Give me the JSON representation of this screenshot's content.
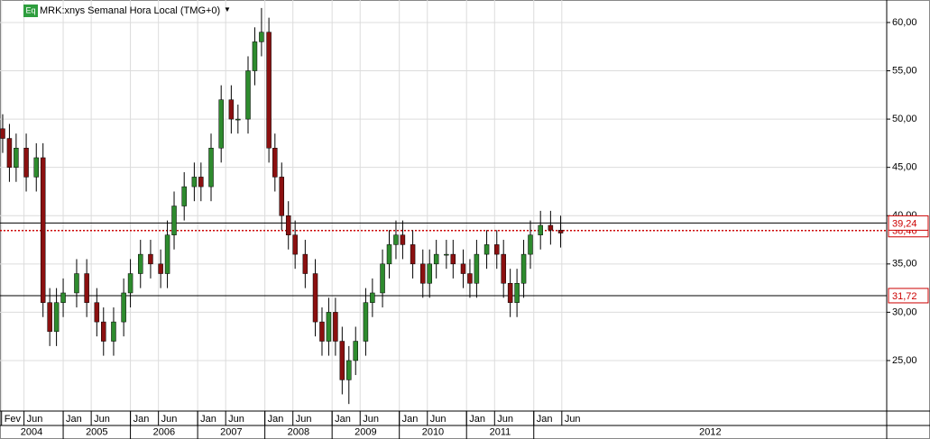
{
  "chart_data": {
    "type": "candlestick",
    "badge": "Eq",
    "title": "MRK:xnys Semanal Hora Local (TMG+0)",
    "menu": "▼",
    "up_color": "#2e8b2e",
    "down_color": "#8b1010",
    "grid": true,
    "x": [
      2004.1,
      2004.2,
      2004.3,
      2004.45,
      2004.6,
      2004.7,
      2004.8,
      2004.9,
      2005.0,
      2005.2,
      2005.35,
      2005.5,
      2005.6,
      2005.75,
      2005.9,
      2006.0,
      2006.15,
      2006.3,
      2006.45,
      2006.55,
      2006.65,
      2006.8,
      2006.95,
      2007.05,
      2007.2,
      2007.35,
      2007.5,
      2007.6,
      2007.75,
      2007.85,
      2007.95,
      2008.06,
      2008.15,
      2008.25,
      2008.35,
      2008.45,
      2008.6,
      2008.75,
      2008.85,
      2008.95,
      2009.05,
      2009.15,
      2009.25,
      2009.35,
      2009.5,
      2009.6,
      2009.75,
      2009.85,
      2009.95,
      2010.05,
      2010.2,
      2010.35,
      2010.45,
      2010.55,
      2010.7,
      2010.8,
      2010.95,
      2011.05,
      2011.15,
      2011.3,
      2011.45,
      2011.55,
      2011.65,
      2011.75,
      2011.85,
      2011.95,
      2012.1,
      2012.25,
      2012.4
    ],
    "open": [
      49,
      48,
      45,
      47,
      44,
      46,
      31,
      28,
      31,
      32,
      34,
      31,
      29,
      27,
      29,
      32,
      34,
      36,
      35,
      34,
      38,
      41,
      43,
      44,
      43,
      47,
      52,
      50,
      50,
      55,
      58,
      59,
      47,
      44,
      40,
      38,
      36,
      34,
      29,
      27,
      30,
      27,
      23,
      25,
      27,
      31,
      32,
      35,
      37,
      38,
      37,
      35,
      33,
      35,
      36,
      36,
      35,
      34,
      33,
      36,
      37,
      36,
      33,
      31,
      33,
      36,
      38,
      39,
      38.5
    ],
    "high": [
      50.5,
      49.5,
      48.5,
      48.5,
      47.5,
      47.5,
      32.5,
      32.5,
      33.5,
      35.5,
      35.5,
      32.5,
      30.5,
      30.5,
      33.5,
      35.5,
      37.5,
      37.5,
      36.5,
      39.5,
      42.5,
      44.5,
      45.5,
      45.5,
      48.5,
      53.5,
      53.5,
      51.5,
      56.5,
      59.5,
      61.5,
      60.5,
      48.5,
      45.5,
      41.5,
      39.5,
      37.5,
      35.5,
      30.5,
      31.5,
      31.5,
      28.5,
      26.5,
      28.5,
      32.5,
      33.5,
      36.5,
      38.5,
      39.5,
      39.5,
      38.5,
      36.5,
      36.5,
      37.5,
      37.5,
      37.5,
      36.5,
      35.5,
      37.5,
      38.5,
      38.5,
      37.5,
      34.5,
      34.5,
      37.5,
      39.5,
      40.5,
      40.5,
      40
    ],
    "low": [
      46.5,
      43.5,
      43.5,
      42.5,
      42.5,
      29.5,
      26.5,
      26.5,
      29.5,
      30.5,
      29.5,
      27.5,
      25.5,
      25.5,
      27.5,
      30.5,
      32.5,
      33.5,
      32.5,
      32.5,
      36.5,
      39.5,
      41.5,
      41.5,
      41.5,
      45.5,
      48.5,
      48.5,
      48.5,
      53.5,
      56.5,
      45.5,
      42.5,
      38.5,
      36.5,
      34.5,
      32.5,
      27.5,
      25.5,
      25.5,
      25.5,
      21.5,
      20.5,
      23.5,
      25.5,
      29.5,
      30.5,
      33.5,
      35.5,
      35.5,
      33.5,
      31.5,
      31.5,
      33.5,
      34.5,
      33.5,
      32.5,
      31.5,
      31.5,
      34.5,
      34.5,
      31.5,
      29.5,
      29.5,
      31.5,
      34.5,
      36.5,
      37,
      36.7
    ],
    "close": [
      48,
      45,
      47,
      44,
      46,
      31,
      28,
      31,
      32,
      34,
      31,
      29,
      27,
      29,
      32,
      34,
      36,
      35,
      34,
      38,
      41,
      43,
      44,
      43,
      47,
      52,
      50,
      50,
      55,
      58,
      59,
      47,
      44,
      40,
      38,
      36,
      34,
      29,
      27,
      30,
      27,
      23,
      25,
      27,
      31,
      32,
      35,
      37,
      38,
      37,
      35,
      33,
      35,
      36,
      36,
      35,
      34,
      33,
      36,
      37,
      36,
      33,
      31,
      33,
      36,
      38,
      39,
      38.5,
      38.2
    ],
    "xlim": [
      2004.06,
      2017.25
    ],
    "ylim": [
      19.77,
      62.33
    ],
    "yticks": [
      {
        "value": 25,
        "label": "25,00"
      },
      {
        "value": 30,
        "label": "30,00"
      },
      {
        "value": 35,
        "label": "35,00"
      },
      {
        "value": 40,
        "label": "40,00"
      },
      {
        "value": 45,
        "label": "45,00"
      },
      {
        "value": 50,
        "label": "50,00"
      },
      {
        "value": 55,
        "label": "55,00"
      },
      {
        "value": 60,
        "label": "60,00"
      }
    ],
    "xticks": [
      {
        "value": 2004.083,
        "label": "Fev"
      },
      {
        "value": 2004.417,
        "label": "Jun"
      },
      {
        "value": 2005.0,
        "label": "Jan"
      },
      {
        "value": 2005.417,
        "label": "Jun"
      },
      {
        "value": 2006.0,
        "label": "Jan"
      },
      {
        "value": 2006.417,
        "label": "Jun"
      },
      {
        "value": 2007.0,
        "label": "Jan"
      },
      {
        "value": 2007.417,
        "label": "Jun"
      },
      {
        "value": 2008.0,
        "label": "Jan"
      },
      {
        "value": 2008.417,
        "label": "Jun"
      },
      {
        "value": 2009.0,
        "label": "Jan"
      },
      {
        "value": 2009.417,
        "label": "Jun"
      },
      {
        "value": 2010.0,
        "label": "Jan"
      },
      {
        "value": 2010.417,
        "label": "Jun"
      },
      {
        "value": 2011.0,
        "label": "Jan"
      },
      {
        "value": 2011.417,
        "label": "Jun"
      },
      {
        "value": 2012.0,
        "label": "Jan"
      },
      {
        "value": 2012.417,
        "label": "Jun"
      }
    ],
    "year_ticks": [
      2004,
      2005,
      2006,
      2007,
      2008,
      2009,
      2010,
      2011,
      2012
    ],
    "levels": [
      {
        "value": 39.24,
        "label": "39,24"
      },
      {
        "value": 31.72,
        "label": "31,72"
      }
    ],
    "last": {
      "value": 38.46,
      "label": "38,46"
    }
  }
}
